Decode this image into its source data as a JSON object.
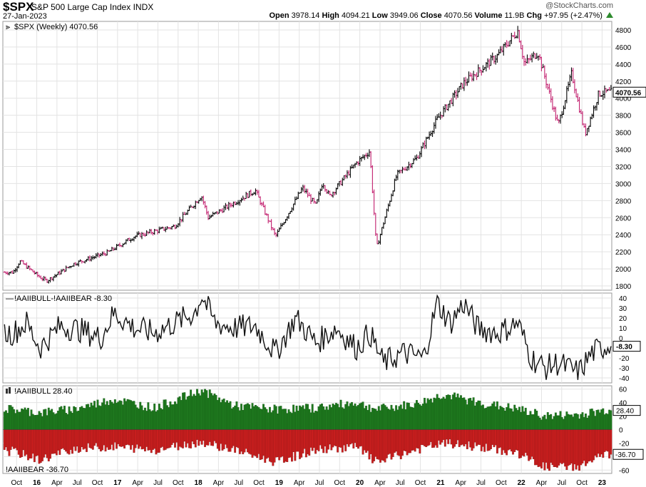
{
  "header": {
    "symbol": "$SPX",
    "name": "S&P 500 Large Cap Index",
    "exchange": "INDX",
    "date": "27-Jan-2023",
    "copyright": "@StockCharts.com",
    "open_label": "Open",
    "open": "3978.14",
    "high_label": "High",
    "high": "4094.21",
    "low_label": "Low",
    "low": "3949.06",
    "close_label": "Close",
    "close": "4070.56",
    "volume_label": "Volume",
    "volume": "11.9B",
    "chg_label": "Chg",
    "chg": "+97.95 (+2.47%)"
  },
  "colors": {
    "up_bar": "#000000",
    "down_bar": "#c21f6e",
    "bull_fill": "#1f7a1f",
    "bear_fill": "#cc1f1f",
    "grid": "#e3e3e3"
  },
  "x_axis_labels": [
    "Oct",
    "16",
    "Apr",
    "Jul",
    "Oct",
    "17",
    "Apr",
    "Jul",
    "Oct",
    "18",
    "Apr",
    "Jul",
    "Oct",
    "19",
    "Apr",
    "Jul",
    "Oct",
    "20",
    "Apr",
    "Jul",
    "Oct",
    "21",
    "Apr",
    "Jul",
    "Oct",
    "22",
    "Apr",
    "Jul",
    "Oct",
    "23"
  ],
  "chart_data": [
    {
      "type": "ohlc",
      "legend": "$SPX (Weekly) 4070.56",
      "last_value": "4070.56",
      "y_ticks": [
        "1800",
        "2000",
        "2200",
        "2400",
        "2600",
        "2800",
        "3000",
        "3200",
        "3400",
        "3600",
        "3800",
        "4000",
        "4200",
        "4400",
        "4600",
        "4800"
      ],
      "ylim": [
        1750,
        4900
      ],
      "x": [
        "2015-09",
        "2015-10",
        "2016-01",
        "2016-02",
        "2016-06",
        "2016-11",
        "2017-03",
        "2017-09",
        "2018-01",
        "2018-02",
        "2018-09",
        "2018-12",
        "2019-04",
        "2019-06",
        "2019-07",
        "2019-08",
        "2019-12",
        "2020-02",
        "2020-03",
        "2020-06",
        "2020-09",
        "2020-12",
        "2021-04",
        "2021-09",
        "2021-12",
        "2022-01",
        "2022-03",
        "2022-06",
        "2022-08",
        "2022-10",
        "2022-12",
        "2023-01"
      ],
      "close": [
        1960,
        2090,
        1900,
        1860,
        2060,
        2190,
        2380,
        2500,
        2860,
        2600,
        2920,
        2380,
        2950,
        2740,
        3020,
        2850,
        3240,
        3380,
        2240,
        3100,
        3300,
        3750,
        4180,
        4500,
        4790,
        4400,
        4540,
        3680,
        4290,
        3580,
        4050,
        4070.56
      ]
    },
    {
      "type": "line",
      "legend": "!AAIIBULL-!AAIIBEAR -8.30",
      "last_value": "-8.30",
      "y_ticks": [
        "40",
        "30",
        "20",
        "10",
        "0",
        "-10",
        "-20",
        "-30",
        "-40"
      ],
      "ylim": [
        -45,
        45
      ],
      "x": [
        "2015-09",
        "2015-11",
        "2016-01",
        "2016-04",
        "2016-07",
        "2016-10",
        "2016-12",
        "2017-03",
        "2017-06",
        "2017-09",
        "2017-12",
        "2018-01",
        "2018-03",
        "2018-06",
        "2018-09",
        "2018-12",
        "2019-03",
        "2019-06",
        "2019-09",
        "2019-12",
        "2020-02",
        "2020-04",
        "2020-07",
        "2020-10",
        "2020-12",
        "2021-02",
        "2021-04",
        "2021-06",
        "2021-09",
        "2021-12",
        "2022-02",
        "2022-04",
        "2022-06",
        "2022-09",
        "2022-11",
        "2023-01"
      ],
      "values": [
        5,
        15,
        -10,
        12,
        8,
        0,
        25,
        10,
        5,
        15,
        25,
        43,
        15,
        10,
        12,
        -15,
        20,
        -5,
        10,
        -10,
        5,
        -25,
        -15,
        -20,
        35,
        15,
        35,
        10,
        5,
        15,
        -20,
        -30,
        -25,
        -35,
        -15,
        -8.3
      ]
    },
    {
      "type": "bar",
      "legend_bull": "!AAIIBULL 28.40",
      "legend_bear": "!AAIIBEAR -36.70",
      "last_bull": "28.40",
      "last_bear": "-36.70",
      "y_ticks": [
        "60",
        "40",
        "20",
        "0",
        "-20",
        "-40",
        "-60"
      ],
      "ylim": [
        -65,
        65
      ],
      "x": [
        "2015-09",
        "2016-01",
        "2016-06",
        "2016-12",
        "2017-06",
        "2018-01",
        "2018-06",
        "2018-12",
        "2019-06",
        "2019-12",
        "2020-03",
        "2020-09",
        "2021-01",
        "2021-06",
        "2021-12",
        "2022-04",
        "2022-09",
        "2023-01"
      ],
      "bull": [
        30,
        25,
        30,
        45,
        32,
        58,
        35,
        30,
        32,
        40,
        30,
        38,
        52,
        40,
        30,
        20,
        22,
        28.4
      ],
      "bear": [
        -32,
        -45,
        -28,
        -25,
        -30,
        -18,
        -30,
        -48,
        -30,
        -25,
        -48,
        -30,
        -20,
        -25,
        -35,
        -55,
        -55,
        -36.7
      ]
    }
  ]
}
